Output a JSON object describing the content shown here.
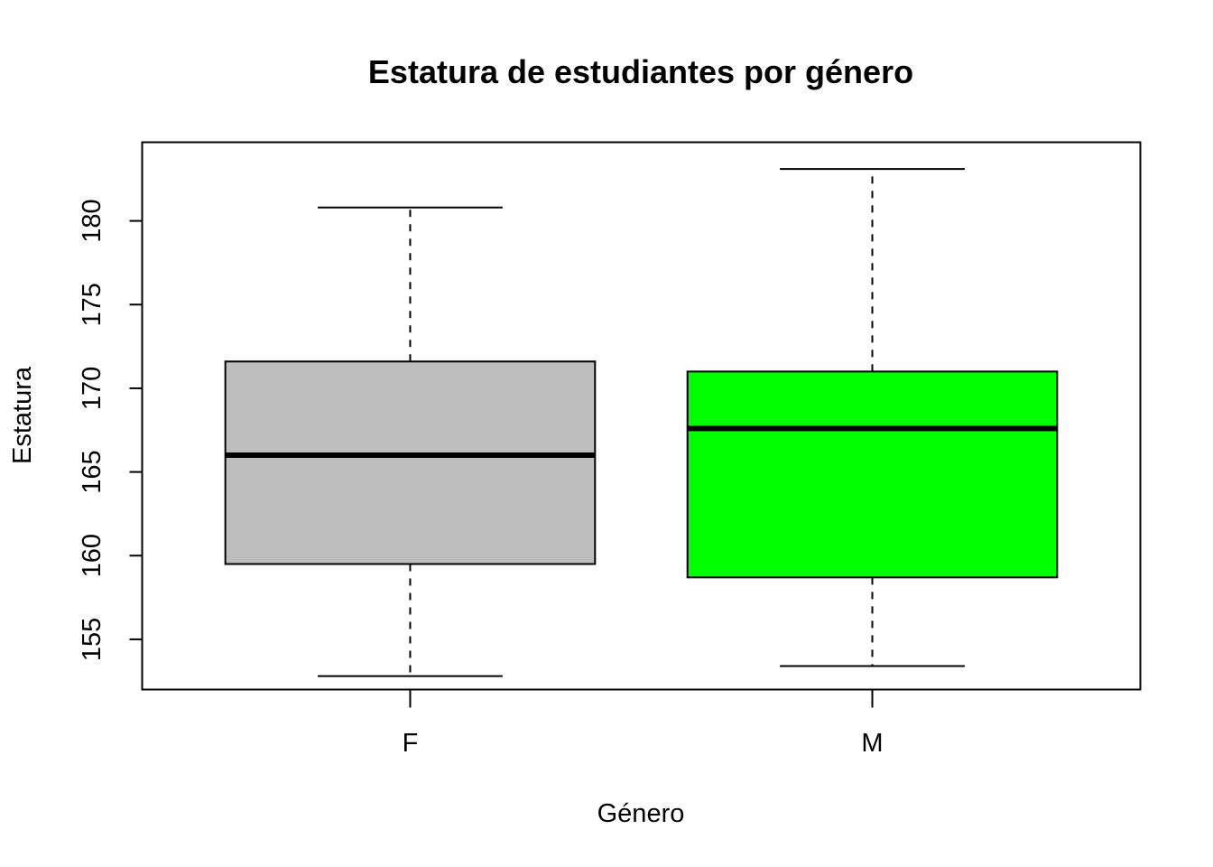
{
  "chart_data": {
    "type": "boxplot",
    "title": "Estatura de estudiantes por género",
    "xlabel": "Género",
    "ylabel": "Estatura",
    "ylim": [
      152,
      184.7
    ],
    "yticks": [
      155,
      160,
      165,
      170,
      175,
      180
    ],
    "grid": false,
    "legend": "none",
    "categories": [
      "F",
      "M"
    ],
    "boxes": [
      {
        "category": "F",
        "color": "#bebebe",
        "min": 152.8,
        "q1": 159.5,
        "median": 166.0,
        "q3": 171.6,
        "max": 180.8
      },
      {
        "category": "M",
        "color": "#00ff00",
        "min": 153.4,
        "q1": 158.7,
        "median": 167.6,
        "q3": 171.0,
        "max": 183.1
      }
    ]
  }
}
